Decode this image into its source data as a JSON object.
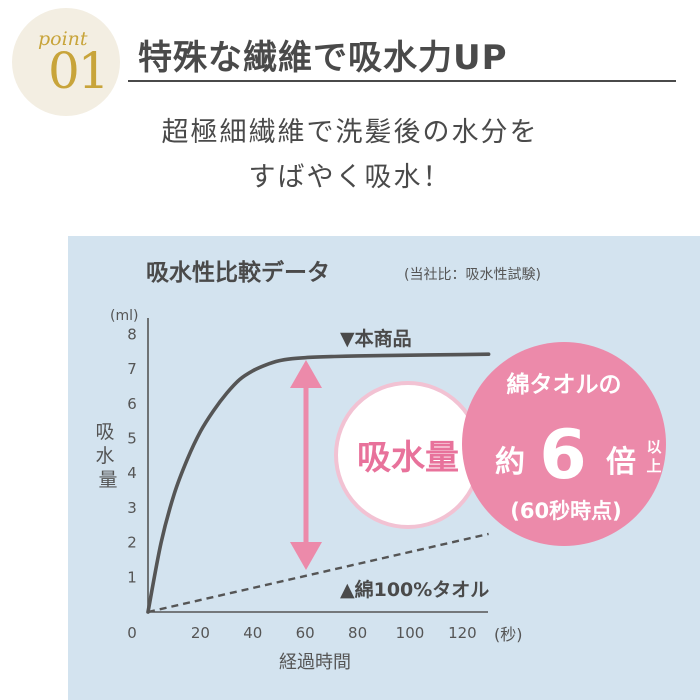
{
  "badge": {
    "word": "point",
    "number": "01"
  },
  "headline": "特殊な繊維で吸水力UP",
  "subtitle": [
    "超極細繊維で洗髪後の水分を",
    "すばやく吸水！"
  ],
  "colors": {
    "panel_bg": "#d3e3ef",
    "gold": "#c8a43a",
    "pink": "#ec8aaa",
    "pink_text": "#e8729b",
    "line": "#555555",
    "badge_bg": "#f3eee2"
  },
  "callouts": {
    "circle_label": "吸水量",
    "badge_line1": "綿タオルの",
    "badge_prefix": "約",
    "badge_multiplier": "6",
    "badge_suffix": "倍",
    "badge_ijou_1": "以",
    "badge_ijou_2": "上",
    "badge_line3": "(60秒時点)"
  },
  "chart_data": {
    "type": "line",
    "title": "吸水性比較データ",
    "subtitle": "(当社比：吸水性試験)",
    "xlabel": "経過時間",
    "x_unit": "(秒)",
    "ylabel": "吸水量",
    "y_unit": "(ml)",
    "xlim": [
      0,
      130
    ],
    "ylim": [
      0,
      8
    ],
    "x_ticks": [
      0,
      20,
      40,
      60,
      80,
      100,
      120
    ],
    "y_ticks": [
      1,
      2,
      3,
      4,
      5,
      6,
      7,
      8
    ],
    "x_tick_labels": [
      "0",
      "20",
      "40",
      "60",
      "80",
      "100",
      "120"
    ],
    "y_tick_labels": [
      "1",
      "2",
      "3",
      "4",
      "5",
      "6",
      "7",
      "8"
    ],
    "grid": false,
    "series": [
      {
        "name": "▼本商品",
        "style": "solid",
        "x": [
          0,
          5,
          10,
          15,
          20,
          25,
          30,
          35,
          40,
          45,
          50,
          55,
          60,
          70,
          80,
          100,
          120,
          130
        ],
        "y": [
          0,
          2.0,
          3.4,
          4.4,
          5.2,
          5.8,
          6.3,
          6.7,
          6.95,
          7.12,
          7.24,
          7.3,
          7.33,
          7.36,
          7.38,
          7.4,
          7.42,
          7.43
        ]
      },
      {
        "name": "▲綿100%タオル",
        "style": "dashed",
        "x": [
          0,
          130
        ],
        "y": [
          0,
          2.25
        ]
      }
    ]
  }
}
